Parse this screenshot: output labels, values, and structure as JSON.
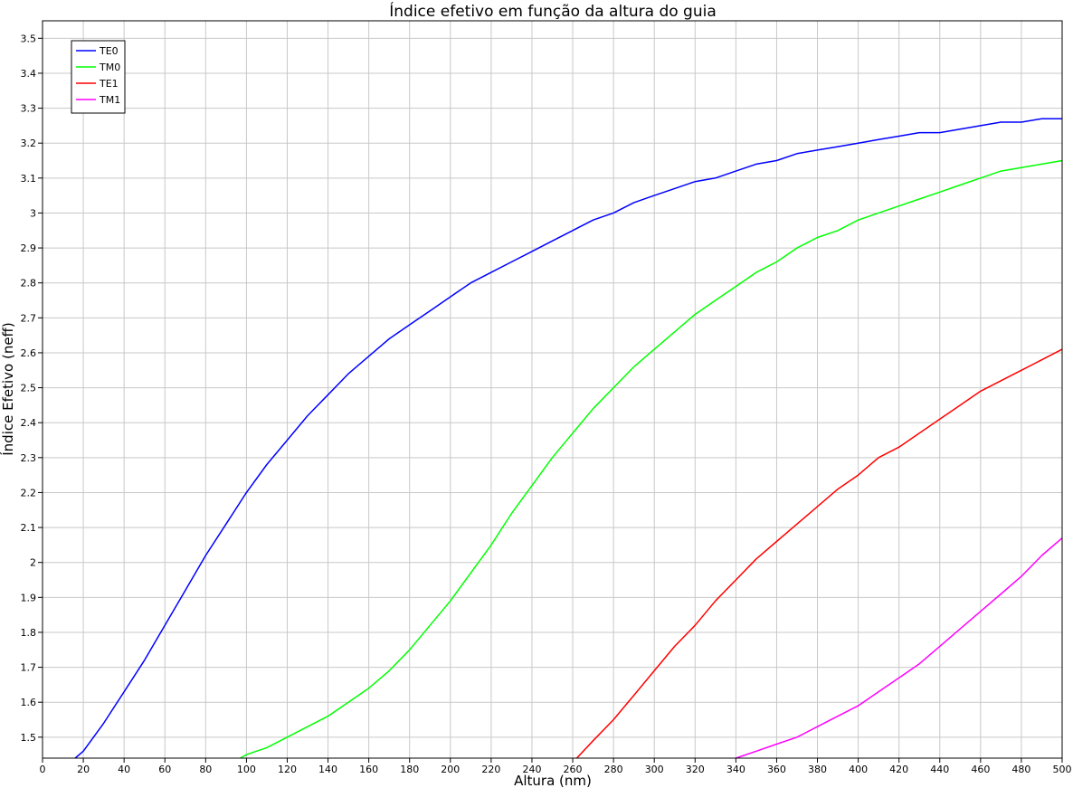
{
  "chart_data": {
    "type": "line",
    "title": "Índice efetivo em função da altura do guia",
    "xlabel": "Altura (nm)",
    "ylabel": "Índice Efetivo (neff)",
    "xlim": [
      0,
      500
    ],
    "ylim": [
      1.44,
      3.55
    ],
    "xticks": [
      0,
      20,
      40,
      60,
      80,
      100,
      120,
      140,
      160,
      180,
      200,
      220,
      240,
      260,
      280,
      300,
      320,
      340,
      360,
      380,
      400,
      420,
      440,
      460,
      480,
      500
    ],
    "yticks": [
      1.5,
      1.6,
      1.7,
      1.8,
      1.9,
      2,
      2.1,
      2.2,
      2.3,
      2.4,
      2.5,
      2.6,
      2.7,
      2.8,
      2.9,
      3,
      3.1,
      3.2,
      3.3,
      3.4,
      3.5
    ],
    "grid": true,
    "legend_position": "top-left",
    "series": [
      {
        "name": "TE0",
        "color": "#0000ff",
        "x": [
          16,
          20,
          30,
          40,
          50,
          60,
          70,
          80,
          90,
          100,
          110,
          120,
          130,
          140,
          150,
          160,
          170,
          180,
          190,
          200,
          210,
          220,
          230,
          240,
          250,
          260,
          270,
          280,
          290,
          300,
          310,
          320,
          330,
          340,
          350,
          360,
          370,
          380,
          390,
          400,
          410,
          420,
          430,
          440,
          450,
          460,
          470,
          480,
          490,
          500
        ],
        "y": [
          1.44,
          1.46,
          1.54,
          1.63,
          1.72,
          1.82,
          1.92,
          2.02,
          2.11,
          2.2,
          2.28,
          2.35,
          2.42,
          2.48,
          2.54,
          2.59,
          2.64,
          2.68,
          2.72,
          2.76,
          2.8,
          2.83,
          2.86,
          2.89,
          2.92,
          2.95,
          2.98,
          3.0,
          3.03,
          3.05,
          3.07,
          3.09,
          3.1,
          3.12,
          3.14,
          3.15,
          3.17,
          3.18,
          3.19,
          3.2,
          3.21,
          3.22,
          3.23,
          3.23,
          3.24,
          3.25,
          3.26,
          3.26,
          3.27,
          3.27
        ]
      },
      {
        "name": "TM0",
        "color": "#00ff00",
        "x": [
          97,
          100,
          110,
          120,
          130,
          140,
          150,
          160,
          170,
          180,
          190,
          200,
          210,
          220,
          230,
          240,
          250,
          260,
          270,
          280,
          290,
          300,
          310,
          320,
          330,
          340,
          350,
          360,
          370,
          380,
          390,
          400,
          410,
          420,
          430,
          440,
          450,
          460,
          470,
          480,
          490,
          500
        ],
        "y": [
          1.44,
          1.45,
          1.47,
          1.5,
          1.53,
          1.56,
          1.6,
          1.64,
          1.69,
          1.75,
          1.82,
          1.89,
          1.97,
          2.05,
          2.14,
          2.22,
          2.3,
          2.37,
          2.44,
          2.5,
          2.56,
          2.61,
          2.66,
          2.71,
          2.75,
          2.79,
          2.83,
          2.86,
          2.9,
          2.93,
          2.95,
          2.98,
          3.0,
          3.02,
          3.04,
          3.06,
          3.08,
          3.1,
          3.12,
          3.13,
          3.14,
          3.15
        ]
      },
      {
        "name": "TE1",
        "color": "#ff0000",
        "x": [
          262,
          270,
          280,
          290,
          300,
          310,
          320,
          330,
          340,
          350,
          360,
          370,
          380,
          390,
          400,
          410,
          420,
          430,
          440,
          450,
          460,
          470,
          480,
          490,
          500
        ],
        "y": [
          1.44,
          1.49,
          1.55,
          1.62,
          1.69,
          1.76,
          1.82,
          1.89,
          1.95,
          2.01,
          2.06,
          2.11,
          2.16,
          2.21,
          2.25,
          2.3,
          2.33,
          2.37,
          2.41,
          2.45,
          2.49,
          2.52,
          2.55,
          2.58,
          2.61
        ]
      },
      {
        "name": "TM1",
        "color": "#ff00ff",
        "x": [
          340,
          350,
          360,
          370,
          380,
          390,
          400,
          410,
          420,
          430,
          440,
          450,
          460,
          470,
          480,
          490,
          500
        ],
        "y": [
          1.44,
          1.46,
          1.48,
          1.5,
          1.53,
          1.56,
          1.59,
          1.63,
          1.67,
          1.71,
          1.76,
          1.81,
          1.86,
          1.91,
          1.96,
          2.02,
          2.07
        ]
      }
    ]
  }
}
